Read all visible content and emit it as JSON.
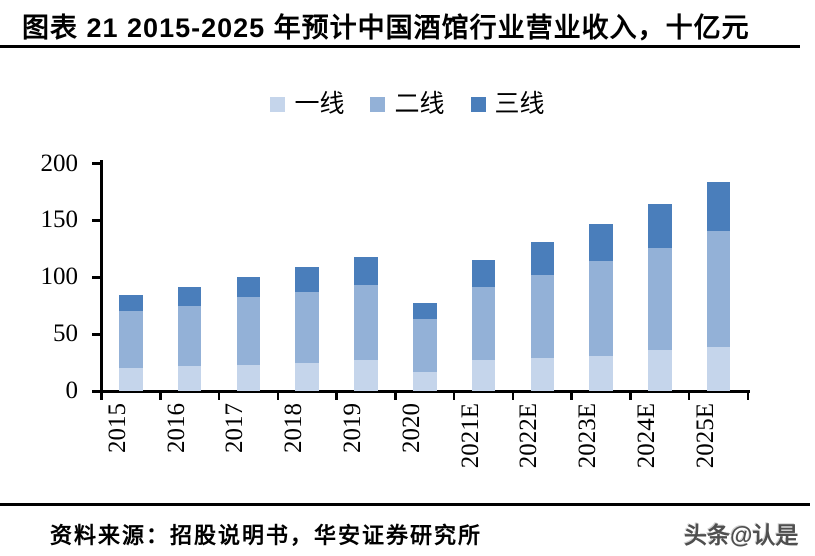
{
  "title": "图表 21 2015-2025 年预计中国酒馆行业营业收入，十亿元",
  "footer": {
    "source": "资料来源：招股说明书，华安证券研究所",
    "watermark": "头条@认是"
  },
  "chart_data": {
    "type": "bar",
    "stacked": true,
    "title": "2015-2025 年预计中国酒馆行业营业收入",
    "unit": "十亿元",
    "categories": [
      "2015",
      "2016",
      "2017",
      "2018",
      "2019",
      "2020",
      "2021E",
      "2022E",
      "2023E",
      "2024E",
      "2025E"
    ],
    "series": [
      {
        "name": "一线",
        "color": "#C5D5EB",
        "values": [
          20,
          22,
          23,
          25,
          27,
          17,
          27,
          29,
          31,
          36,
          39
        ]
      },
      {
        "name": "二线",
        "color": "#93B1D7",
        "values": [
          50,
          53,
          60,
          62,
          66,
          46,
          64,
          73,
          83,
          90,
          102
        ]
      },
      {
        "name": "三线",
        "color": "#4A7EBB",
        "values": [
          14,
          16,
          17,
          22,
          25,
          14,
          24,
          29,
          33,
          38,
          43
        ]
      }
    ],
    "totals": [
      84,
      91,
      100,
      109,
      118,
      77,
      115,
      131,
      147,
      164,
      184
    ],
    "ylim": [
      0,
      200
    ],
    "yticks": [
      0,
      50,
      100,
      150,
      200
    ],
    "grid": false,
    "legend_position": "top",
    "axis_color": "#000000"
  }
}
